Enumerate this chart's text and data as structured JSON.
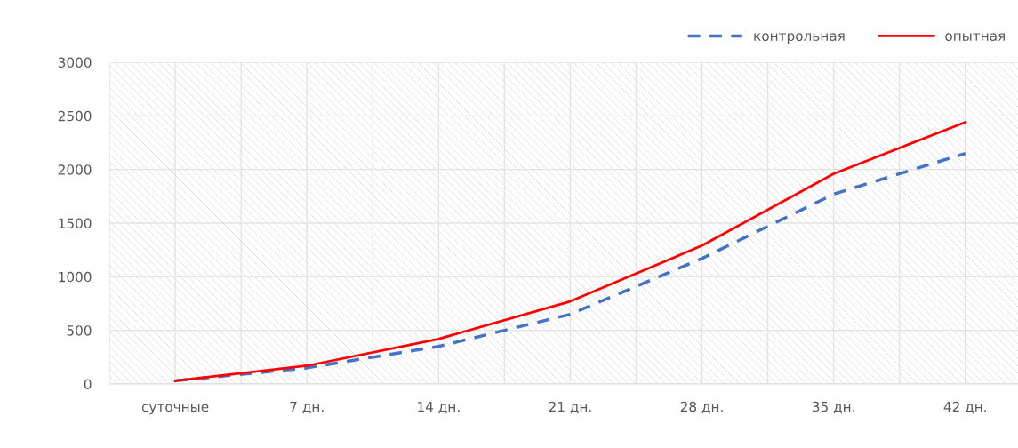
{
  "chart_data": {
    "type": "line",
    "categories": [
      "суточные",
      "7 дн.",
      "14 дн.",
      "21 дн.",
      "28 дн.",
      "35 дн.",
      "42 дн."
    ],
    "series": [
      {
        "name": "контрольная",
        "color": "#4472c4",
        "line_style": "dashed",
        "values": [
          30,
          150,
          350,
          650,
          1170,
          1770,
          2150
        ]
      },
      {
        "name": "опытная",
        "color": "#ff0000",
        "line_style": "solid",
        "values": [
          30,
          170,
          420,
          770,
          1290,
          1960,
          2440
        ]
      }
    ],
    "ylim": [
      0,
      3000
    ],
    "yticks": [
      0,
      500,
      1000,
      1500,
      2000,
      2500,
      3000
    ],
    "grid": true,
    "legend": "top right",
    "marker": "none"
  }
}
